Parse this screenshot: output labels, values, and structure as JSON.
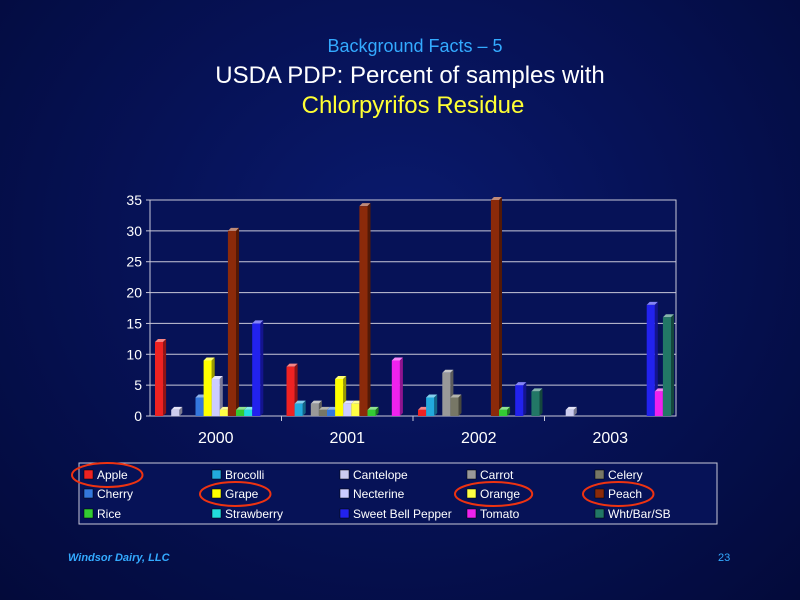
{
  "slide": {
    "subtitle": "Background Facts – 5",
    "title_line1": "USDA PDP: Percent of samples with",
    "title_line2": "Chlorpyrifos Residue",
    "footer_left": "Windsor Dairy, LLC",
    "page_number": "23"
  },
  "chart_data": {
    "type": "bar",
    "title": "",
    "xlabel": "",
    "ylabel": "",
    "ylim": [
      0,
      35
    ],
    "yticks": [
      0,
      5,
      10,
      15,
      20,
      25,
      30,
      35
    ],
    "grid": true,
    "legend_position": "bottom",
    "categories": [
      "2000",
      "2001",
      "2002",
      "2003"
    ],
    "series": [
      {
        "name": "Apple",
        "color": "#ee2222",
        "values": [
          12,
          8,
          1,
          0
        ]
      },
      {
        "name": "Brocolli",
        "color": "#22aadd",
        "values": [
          0,
          2,
          3,
          0
        ]
      },
      {
        "name": "Cantelope",
        "color": "#ccccee",
        "values": [
          1,
          0,
          0,
          1
        ]
      },
      {
        "name": "Carrot",
        "color": "#999999",
        "values": [
          0,
          2,
          7,
          0
        ]
      },
      {
        "name": "Celery",
        "color": "#777766",
        "values": [
          0,
          1,
          3,
          0
        ]
      },
      {
        "name": "Cherry",
        "color": "#3377dd",
        "values": [
          3,
          1,
          0,
          0
        ]
      },
      {
        "name": "Grape",
        "color": "#ffff00",
        "values": [
          9,
          6,
          0,
          0
        ]
      },
      {
        "name": "Necterine",
        "color": "#ccccff",
        "values": [
          6,
          2,
          0,
          0
        ]
      },
      {
        "name": "Orange",
        "color": "#ffff44",
        "values": [
          1,
          2,
          0,
          0
        ]
      },
      {
        "name": "Peach",
        "color": "#8b2a0a",
        "values": [
          30,
          34,
          35,
          0
        ]
      },
      {
        "name": "Rice",
        "color": "#33cc33",
        "values": [
          1,
          1,
          1,
          0
        ]
      },
      {
        "name": "Strawberry",
        "color": "#22dddd",
        "values": [
          1,
          0,
          0,
          0
        ]
      },
      {
        "name": "Sweet Bell Pepper",
        "color": "#2222ee",
        "values": [
          15,
          0,
          5,
          18
        ]
      },
      {
        "name": "Tomato",
        "color": "#ee22ee",
        "values": [
          0,
          9,
          0,
          4
        ]
      },
      {
        "name": "Wht/Bar/SB",
        "color": "#227766",
        "values": [
          0,
          0,
          4,
          16
        ]
      }
    ],
    "highlighted_legend_entries": [
      "Apple",
      "Grape",
      "Orange",
      "Peach"
    ],
    "highlight_color": "#ee3311"
  }
}
